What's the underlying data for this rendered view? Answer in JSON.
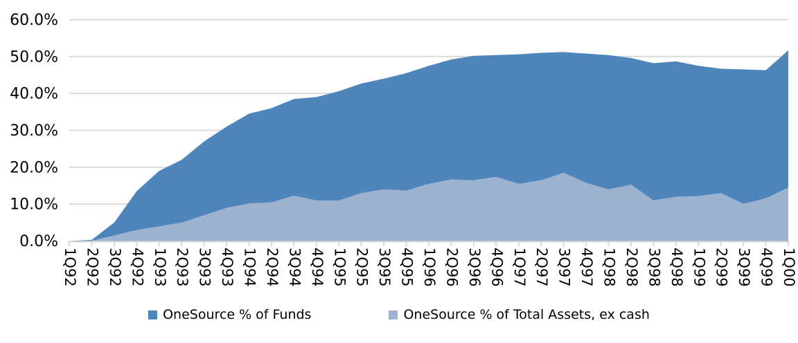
{
  "chart_data": {
    "type": "area",
    "mode": "overlay",
    "title": "",
    "xlabel": "",
    "ylabel": "",
    "categories": [
      "1Q92",
      "2Q92",
      "3Q92",
      "4Q92",
      "1Q93",
      "2Q93",
      "3Q93",
      "4Q93",
      "1Q94",
      "2Q94",
      "3Q94",
      "4Q94",
      "1Q95",
      "2Q95",
      "3Q95",
      "4Q95",
      "1Q96",
      "2Q96",
      "3Q96",
      "4Q96",
      "1Q97",
      "2Q97",
      "3Q97",
      "4Q97",
      "1Q98",
      "2Q98",
      "3Q98",
      "4Q98",
      "1Q99",
      "2Q99",
      "3Q99",
      "4Q99",
      "1Q00"
    ],
    "series": [
      {
        "name": "OneSource % of Funds",
        "color": "#4E86BC",
        "values": [
          0.0,
          0.3,
          5.0,
          13.5,
          19.0,
          22.0,
          27.0,
          31.0,
          34.5,
          36.0,
          38.5,
          39.0,
          40.6,
          42.7,
          44.0,
          45.5,
          47.5,
          49.2,
          50.2,
          50.4,
          50.6,
          51.0,
          51.2,
          50.8,
          50.4,
          49.6,
          48.2,
          48.7,
          47.5,
          46.7,
          46.5,
          46.3,
          51.7
        ]
      },
      {
        "name": "OneSource % of Total Assets, ex cash",
        "color": "#9DB2CE",
        "values": [
          0.0,
          0.1,
          1.5,
          3.0,
          4.0,
          5.0,
          7.0,
          9.0,
          10.2,
          10.5,
          12.3,
          11.0,
          11.0,
          13.0,
          14.0,
          13.7,
          15.5,
          16.7,
          16.5,
          17.4,
          15.5,
          16.5,
          18.5,
          15.8,
          14.0,
          15.3,
          11.0,
          12.0,
          12.2,
          13.0,
          10.1,
          11.6,
          14.5
        ]
      }
    ],
    "ylim": [
      0,
      60
    ],
    "y_tick_interval": 10,
    "y_tick_labels": [
      "0.0%",
      "10.0%",
      "20.0%",
      "30.0%",
      "40.0%",
      "50.0%",
      "60.0%"
    ],
    "grid": "horizontal",
    "gridline_color": "#D9D9D9",
    "axis_color": "#D9D9D9",
    "text_color": "#000000",
    "legend_position": "bottom"
  }
}
